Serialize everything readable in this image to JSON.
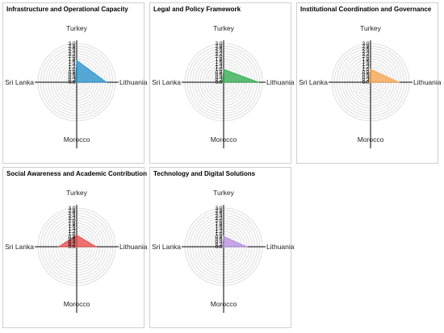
{
  "chart_data": [
    {
      "type": "radar",
      "title": "Infrastructure and Operational Capacity",
      "axes": [
        "Turkey",
        "Lithuania",
        "Morocco",
        "Sri Lanka"
      ],
      "values": [
        1.7,
        2.3,
        0.0,
        0.1
      ],
      "color": "#1f8ec9",
      "rlim": [
        0.0,
        3.0
      ],
      "ticks": [
        "0.0",
        "0.2",
        "0.4",
        "0.6",
        "0.8",
        "1.0",
        "1.2",
        "1.4",
        "1.6",
        "1.8",
        "2.0",
        "2.2",
        "2.4",
        "2.6",
        "2.8",
        "3.0"
      ]
    },
    {
      "type": "radar",
      "title": "Legal and Policy Framework",
      "axes": [
        "Turkey",
        "Lithuania",
        "Morocco",
        "Sri Lanka"
      ],
      "values": [
        1.0,
        2.7,
        0.0,
        0.1
      ],
      "color": "#2aa84a",
      "rlim": [
        0.0,
        3.0
      ],
      "ticks": [
        "0.0",
        "0.2",
        "0.4",
        "0.6",
        "0.8",
        "1.0",
        "1.2",
        "1.4",
        "1.6",
        "1.8",
        "2.0",
        "2.2",
        "2.4",
        "2.6",
        "2.8",
        "3.0"
      ]
    },
    {
      "type": "radar",
      "title": "Institutional Coordination and Governance",
      "axes": [
        "Turkey",
        "Lithuania",
        "Morocco",
        "Sri Lanka"
      ],
      "values": [
        1.0,
        2.2,
        0.0,
        0.2
      ],
      "color": "#f5a04a",
      "rlim": [
        0.0,
        3.0
      ],
      "ticks": [
        "0.0",
        "0.2",
        "0.4",
        "0.6",
        "0.8",
        "1.0",
        "1.2",
        "1.4",
        "1.6",
        "1.8",
        "2.0",
        "2.2",
        "2.4",
        "2.6",
        "2.8",
        "3.0"
      ]
    },
    {
      "type": "radar",
      "title": "Social Awareness and Academic Contribution",
      "axes": [
        "Turkey",
        "Lithuania",
        "Morocco",
        "Sri Lanka"
      ],
      "values": [
        0.9,
        1.5,
        0.0,
        1.4
      ],
      "color": "#e84646",
      "rlim": [
        0.0,
        3.0
      ],
      "ticks": [
        "0.0",
        "0.2",
        "0.4",
        "0.6",
        "0.8",
        "1.0",
        "1.2",
        "1.4",
        "1.6",
        "1.8",
        "2.0",
        "2.2",
        "2.4",
        "2.6",
        "2.8",
        "3.0"
      ]
    },
    {
      "type": "radar",
      "title": "Technology and Digital Solutions",
      "axes": [
        "Turkey",
        "Lithuania",
        "Morocco",
        "Sri Lanka"
      ],
      "values": [
        0.8,
        1.8,
        0.0,
        0.1
      ],
      "color": "#b48ce0",
      "rlim": [
        0.0,
        3.0
      ],
      "ticks": [
        "0.0",
        "0.2",
        "0.4",
        "0.6",
        "0.8",
        "1.0",
        "1.2",
        "1.4",
        "1.6",
        "1.8",
        "2.0",
        "2.2",
        "2.4",
        "2.6",
        "2.8",
        "3.0"
      ]
    }
  ]
}
